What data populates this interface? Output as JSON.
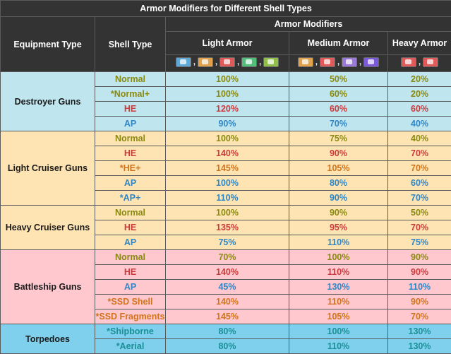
{
  "title": "Armor Modifiers for Different Shell Types",
  "header": {
    "equipment_type": "Equipment Type",
    "shell_type": "Shell Type",
    "armor_modifiers": "Armor Modifiers",
    "light_armor": "Light Armor",
    "medium_armor": "Medium Armor",
    "heavy_armor": "Heavy Armor",
    "separator": ","
  },
  "icons": {
    "light": [
      {
        "name": "destroyer-hull-icon",
        "color": "#5fa8d8"
      },
      {
        "name": "light-cruiser-hull-icon",
        "color": "#e0a24a"
      },
      {
        "name": "repair-ship-hull-icon",
        "color": "#e05a5a"
      },
      {
        "name": "sub-hull-icon",
        "color": "#4fbf7a"
      },
      {
        "name": "support-hull-icon",
        "color": "#8fbf4a"
      }
    ],
    "medium": [
      {
        "name": "heavy-cruiser-hull-icon",
        "color": "#e0a24a"
      },
      {
        "name": "large-cruiser-hull-icon",
        "color": "#e05a5a"
      },
      {
        "name": "light-carrier-hull-icon",
        "color": "#9a7ad8"
      },
      {
        "name": "carrier-hull-icon",
        "color": "#7a5ad8"
      }
    ],
    "heavy": [
      {
        "name": "battleship-hull-icon",
        "color": "#e05a5a"
      },
      {
        "name": "battlecruiser-hull-icon",
        "color": "#e05a5a"
      }
    ]
  },
  "groups": [
    {
      "name": "Destroyer Guns",
      "rows": [
        {
          "shell": "Normal",
          "light": "100%",
          "medium": "50%",
          "heavy": "20%"
        },
        {
          "shell": "*Normal+",
          "light": "100%",
          "medium": "60%",
          "heavy": "20%"
        },
        {
          "shell": "HE",
          "light": "120%",
          "medium": "60%",
          "heavy": "60%"
        },
        {
          "shell": "AP",
          "light": "90%",
          "medium": "70%",
          "heavy": "40%"
        }
      ]
    },
    {
      "name": "Light Cruiser Guns",
      "rows": [
        {
          "shell": "Normal",
          "light": "100%",
          "medium": "75%",
          "heavy": "40%"
        },
        {
          "shell": "HE",
          "light": "140%",
          "medium": "90%",
          "heavy": "70%"
        },
        {
          "shell": "*HE+",
          "light": "145%",
          "medium": "105%",
          "heavy": "70%"
        },
        {
          "shell": "AP",
          "light": "100%",
          "medium": "80%",
          "heavy": "60%"
        },
        {
          "shell": "*AP+",
          "light": "110%",
          "medium": "90%",
          "heavy": "70%"
        }
      ]
    },
    {
      "name": "Heavy Cruiser Guns",
      "rows": [
        {
          "shell": "Normal",
          "light": "100%",
          "medium": "90%",
          "heavy": "50%"
        },
        {
          "shell": "HE",
          "light": "135%",
          "medium": "95%",
          "heavy": "70%"
        },
        {
          "shell": "AP",
          "light": "75%",
          "medium": "110%",
          "heavy": "75%"
        }
      ]
    },
    {
      "name": "Battleship Guns",
      "rows": [
        {
          "shell": "Normal",
          "light": "70%",
          "medium": "100%",
          "heavy": "90%"
        },
        {
          "shell": "HE",
          "light": "140%",
          "medium": "110%",
          "heavy": "90%"
        },
        {
          "shell": "AP",
          "light": "45%",
          "medium": "130%",
          "heavy": "110%"
        },
        {
          "shell": "*SSD Shell",
          "light": "140%",
          "medium": "110%",
          "heavy": "90%"
        },
        {
          "shell": "*SSD Fragments",
          "light": "145%",
          "medium": "105%",
          "heavy": "70%"
        }
      ]
    },
    {
      "name": "Torpedoes",
      "rows": [
        {
          "shell": "*Shipborne",
          "light": "80%",
          "medium": "100%",
          "heavy": "130%"
        },
        {
          "shell": "*Aerial",
          "light": "80%",
          "medium": "110%",
          "heavy": "130%"
        }
      ]
    }
  ],
  "colors": {
    "header_bg": "#333333",
    "destroyer_bg": "#bfe5ee",
    "light_cruiser_bg": "#ffe4b3",
    "heavy_cruiser_bg": "#ffe4b3",
    "battleship_bg": "#ffc8cf",
    "torpedo_bg": "#7fd0ec",
    "normal_text": "#8a8a10",
    "he_text": "#cc3b3b",
    "ap_text": "#2f86c6",
    "special_text": "#d2741a",
    "torpedo_text": "#1a8f98"
  }
}
